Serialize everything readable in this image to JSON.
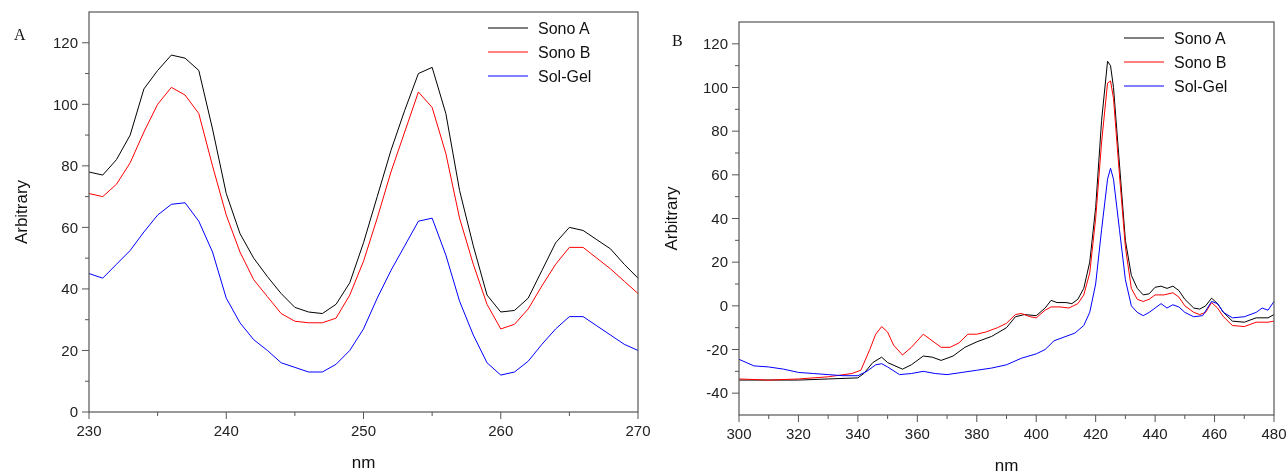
{
  "chart_data": [
    {
      "type": "line",
      "xlabel": "nm",
      "ylabel": "Arbitrary",
      "annotations": [
        "A"
      ],
      "legend": "top right",
      "grid": false,
      "xlim": [
        230,
        270
      ],
      "ylim": [
        0,
        130
      ],
      "xticks": [
        230,
        {
          "value": 235,
          "label": null
        },
        240,
        {
          "value": 245,
          "label": null
        },
        250,
        {
          "value": 255,
          "label": null
        },
        260,
        {
          "value": 265,
          "label": null
        },
        270
      ],
      "yticks": [
        0,
        {
          "value": 10,
          "label": null
        },
        20,
        {
          "value": 30,
          "label": null
        },
        40,
        {
          "value": 50,
          "label": null
        },
        60,
        {
          "value": 70,
          "label": null
        },
        80,
        {
          "value": 90,
          "label": null
        },
        100,
        {
          "value": 110,
          "label": null
        },
        120
      ],
      "x": [
        230,
        231,
        232,
        233,
        234,
        235,
        236,
        237,
        238,
        239,
        240,
        241,
        242,
        243,
        244,
        245,
        246,
        247,
        248,
        249,
        250,
        251,
        252,
        253,
        254,
        255,
        256,
        257,
        258,
        259,
        260,
        261,
        262,
        263,
        264,
        265,
        266,
        267,
        268,
        269,
        270
      ],
      "series": [
        {
          "name": "Sono A",
          "color": "#000000",
          "values": [
            78,
            77,
            82,
            90,
            105,
            111,
            116,
            115,
            111,
            92,
            71,
            58,
            50,
            44,
            38.5,
            34,
            32.5,
            32,
            35,
            42,
            55,
            70,
            85,
            98,
            110,
            112,
            97,
            72,
            54,
            38,
            32.5,
            33,
            37,
            46,
            55,
            60,
            59,
            56,
            53,
            48,
            43.5
          ]
        },
        {
          "name": "Sono B",
          "color": "#ff0000",
          "values": [
            71,
            70,
            74,
            81,
            91,
            100,
            105.5,
            103,
            97,
            80,
            64,
            52,
            43,
            37.5,
            32,
            29.5,
            29,
            29,
            30.5,
            38,
            49,
            63,
            78,
            91,
            104,
            99,
            84,
            63,
            48,
            35,
            27,
            28.5,
            33.5,
            41,
            48,
            53.5,
            53.5,
            50,
            46.5,
            42.5,
            38.5
          ]
        },
        {
          "name": "Sol-Gel",
          "color": "#0000ff",
          "values": [
            45,
            43.5,
            48,
            52.5,
            58.5,
            64,
            67.5,
            68,
            62,
            52,
            37,
            29,
            23.5,
            20,
            16,
            14.5,
            13,
            13,
            15.5,
            20,
            27,
            37,
            46,
            54,
            62,
            63,
            51,
            36,
            25,
            16,
            12,
            13,
            16.5,
            22,
            27,
            31,
            31,
            28,
            25,
            22,
            20
          ]
        }
      ]
    },
    {
      "type": "line",
      "xlabel": "nm",
      "ylabel": "Arbitrary",
      "annotations": [
        "B"
      ],
      "legend": "top right",
      "grid": false,
      "xlim": [
        300,
        480
      ],
      "ylim": [
        -50,
        130
      ],
      "xticks": [
        300,
        {
          "value": 310,
          "label": null
        },
        320,
        {
          "value": 330,
          "label": null
        },
        340,
        {
          "value": 350,
          "label": null
        },
        360,
        {
          "value": 370,
          "label": null
        },
        380,
        {
          "value": 390,
          "label": null
        },
        400,
        {
          "value": 410,
          "label": null
        },
        420,
        {
          "value": 430,
          "label": null
        },
        440,
        {
          "value": 450,
          "label": null
        },
        460,
        {
          "value": 470,
          "label": null
        },
        480
      ],
      "yticks": [
        -40,
        {
          "value": -30,
          "label": null
        },
        -20,
        {
          "value": -10,
          "label": null
        },
        0,
        {
          "value": 10,
          "label": null
        },
        20,
        {
          "value": 30,
          "label": null
        },
        40,
        {
          "value": 50,
          "label": null
        },
        60,
        {
          "value": 70,
          "label": null
        },
        80,
        {
          "value": 90,
          "label": null
        },
        100,
        {
          "value": 110,
          "label": null
        },
        120
      ],
      "series": [
        {
          "name": "Sono A",
          "color": "#000000",
          "x": [
            300,
            320,
            330,
            340,
            342,
            345,
            348,
            350,
            355,
            358,
            362,
            365,
            368,
            372,
            376,
            380,
            385,
            390,
            393,
            396,
            400,
            403,
            405,
            407,
            410,
            412,
            414,
            416,
            418,
            420,
            422,
            424,
            425,
            426,
            428,
            430,
            432,
            434,
            436,
            438,
            440,
            442,
            444,
            446,
            448,
            450,
            453,
            455,
            457,
            459,
            461,
            463,
            466,
            470,
            474,
            478,
            480
          ],
          "values": [
            -34,
            -34,
            -33.5,
            -33,
            -31,
            -26,
            -23.5,
            -26,
            -29,
            -27,
            -23,
            -23.5,
            -25,
            -23,
            -19,
            -16.5,
            -14,
            -10,
            -5,
            -4,
            -4.5,
            -1,
            2.5,
            1.5,
            1.5,
            1,
            3,
            8,
            20,
            45,
            85,
            112,
            110,
            100,
            65,
            30,
            14,
            8,
            5,
            5.5,
            8.5,
            9,
            8,
            9,
            7,
            3,
            -1,
            -1.5,
            0,
            3.5,
            1,
            -3,
            -7,
            -7.5,
            -5.5,
            -5.5,
            -4
          ]
        },
        {
          "name": "Sono B",
          "color": "#ff0000",
          "x": [
            300,
            310,
            320,
            330,
            338,
            341,
            344,
            346,
            348,
            350,
            352,
            355,
            358,
            362,
            365,
            368,
            371,
            374,
            377,
            380,
            383,
            387,
            390,
            393,
            395,
            398,
            400,
            403,
            405,
            408,
            411,
            414,
            416,
            418,
            420,
            422,
            424,
            425,
            426,
            428,
            430,
            432,
            434,
            436,
            438,
            440,
            443,
            446,
            448,
            450,
            453,
            455,
            457,
            459,
            461,
            463,
            466,
            470,
            474,
            478,
            480
          ],
          "values": [
            -33.5,
            -34,
            -33.5,
            -32.5,
            -31,
            -29.5,
            -20,
            -13,
            -9.5,
            -12,
            -18,
            -22.5,
            -19,
            -13,
            -16,
            -19,
            -19,
            -17,
            -13,
            -13,
            -12,
            -10,
            -8,
            -4,
            -3.5,
            -5,
            -5.5,
            -2,
            -0.5,
            -0.5,
            -1,
            1,
            5,
            15,
            40,
            75,
            102,
            103,
            95,
            60,
            27,
            8,
            3,
            2,
            3,
            5,
            5,
            6,
            4,
            0,
            -3,
            -4,
            -3,
            1.5,
            -1,
            -5,
            -9,
            -9.5,
            -7.5,
            -7.5,
            -7
          ]
        },
        {
          "name": "Sol-Gel",
          "color": "#0000ff",
          "x": [
            300,
            305,
            310,
            315,
            320,
            325,
            330,
            335,
            340,
            343,
            346,
            348,
            350,
            354,
            358,
            362,
            366,
            370,
            375,
            380,
            385,
            390,
            395,
            400,
            403,
            406,
            410,
            413,
            416,
            418,
            420,
            422,
            424,
            425,
            426,
            428,
            430,
            432,
            434,
            436,
            438,
            440,
            442,
            444,
            446,
            448,
            450,
            453,
            456,
            459,
            461,
            463,
            466,
            470,
            474,
            476,
            478,
            480
          ],
          "values": [
            -24.5,
            -27.5,
            -28,
            -29,
            -30.5,
            -31,
            -31.5,
            -32,
            -32,
            -30,
            -27,
            -26.5,
            -28,
            -31.5,
            -31,
            -30,
            -31,
            -31.5,
            -30.5,
            -29.5,
            -28.5,
            -27,
            -24,
            -22,
            -20,
            -16,
            -14,
            -12.5,
            -9,
            -3,
            10,
            35,
            58,
            63,
            58,
            35,
            12,
            0,
            -3,
            -4.5,
            -3,
            -1,
            1,
            -1,
            0.5,
            -0.5,
            -3,
            -5,
            -4.5,
            2,
            1,
            -3,
            -5.5,
            -5,
            -3,
            -1,
            -2,
            2
          ]
        }
      ]
    }
  ]
}
